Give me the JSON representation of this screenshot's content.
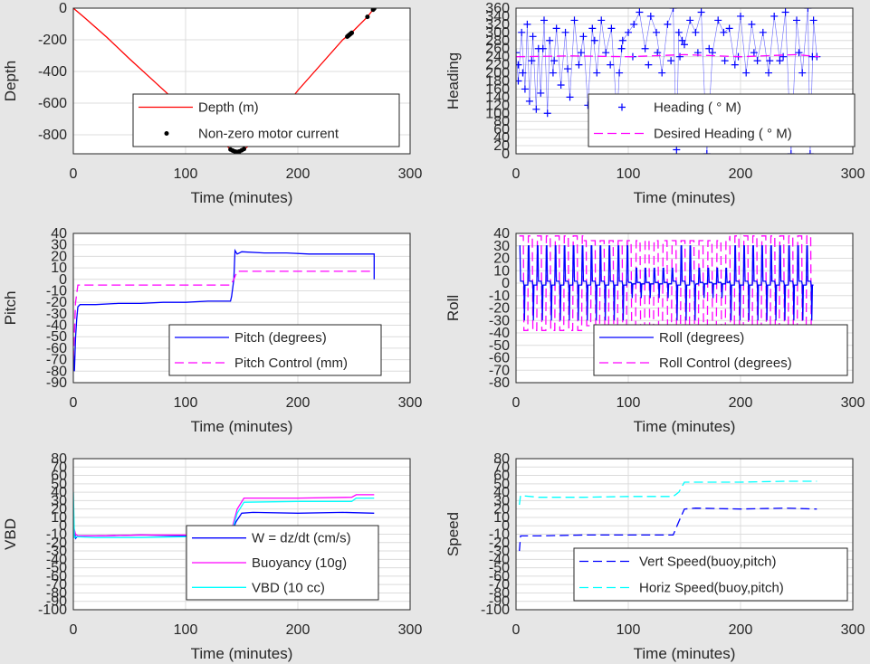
{
  "chart_data": [
    {
      "id": "depth",
      "type": "line",
      "xlabel": "Time (minutes)",
      "ylabel": "Depth",
      "xlim": [
        0,
        300
      ],
      "ylim": [
        -920,
        0
      ],
      "xticks": [
        0,
        100,
        200,
        300
      ],
      "yticks": [
        0,
        -200,
        -400,
        -600,
        -800
      ],
      "grid": true,
      "legend_position": "bottom-right",
      "series": [
        {
          "name": "Depth (m)",
          "style": "line",
          "color": "#ff0000",
          "x": [
            0,
            10,
            30,
            50,
            70,
            90,
            110,
            130,
            140,
            143,
            146,
            149,
            152,
            160,
            180,
            200,
            220,
            240,
            250,
            262,
            268
          ],
          "y": [
            0,
            -60,
            -185,
            -320,
            -450,
            -580,
            -700,
            -830,
            -890,
            -905,
            -910,
            -905,
            -892,
            -850,
            -700,
            -520,
            -360,
            -200,
            -140,
            -55,
            0
          ]
        },
        {
          "name": "Non-zero motor current",
          "style": "dots",
          "color": "#000000",
          "x": [
            140,
            142,
            144,
            146,
            148,
            150,
            152,
            244,
            245,
            246,
            247,
            248,
            262,
            267,
            268
          ],
          "y": [
            -893,
            -900,
            -906,
            -908,
            -905,
            -898,
            -890,
            -180,
            -174,
            -168,
            -162,
            -156,
            -55,
            -10,
            -2
          ]
        }
      ]
    },
    {
      "id": "heading",
      "type": "scatter",
      "xlabel": "Time (minutes)",
      "ylabel": "Heading",
      "xlim": [
        0,
        300
      ],
      "ylim": [
        0,
        360
      ],
      "xticks": [
        0,
        100,
        200,
        300
      ],
      "yticks": [
        0,
        20,
        40,
        60,
        80,
        100,
        120,
        140,
        160,
        180,
        200,
        220,
        240,
        260,
        280,
        300,
        320,
        340,
        360
      ],
      "grid": true,
      "legend_position": "bottom-right",
      "series": [
        {
          "name": "Heading (   ° M)",
          "style": "plus",
          "color": "#0000ff",
          "x": [
            0,
            2,
            5,
            8,
            10,
            12,
            15,
            18,
            20,
            22,
            25,
            28,
            30,
            33,
            36,
            40,
            44,
            48,
            52,
            56,
            60,
            64,
            68,
            72,
            76,
            80,
            85,
            90,
            92,
            95,
            100,
            105,
            110,
            115,
            120,
            125,
            130,
            135,
            140,
            143,
            145,
            148,
            150,
            155,
            160,
            165,
            170,
            175,
            180,
            185,
            190,
            195,
            200,
            205,
            210,
            215,
            220,
            225,
            230,
            235,
            240,
            245,
            250,
            255,
            260,
            262,
            265,
            268,
            2,
            6,
            14,
            24,
            34,
            46,
            58,
            70,
            84,
            94,
            104,
            118,
            126,
            138,
            146,
            162,
            172,
            186,
            198,
            212,
            226,
            238,
            252,
            264
          ],
          "y": [
            250,
            180,
            300,
            160,
            320,
            130,
            290,
            110,
            260,
            150,
            330,
            100,
            280,
            200,
            310,
            170,
            300,
            140,
            330,
            220,
            290,
            120,
            310,
            200,
            330,
            250,
            310,
            90,
            200,
            280,
            300,
            320,
            350,
            260,
            340,
            300,
            200,
            320,
            360,
            10,
            300,
            280,
            270,
            330,
            300,
            350,
            0,
            250,
            330,
            300,
            310,
            220,
            340,
            200,
            320,
            230,
            300,
            200,
            340,
            230,
            350,
            0,
            330,
            200,
            360,
            0,
            330,
            240,
            220,
            200,
            230,
            260,
            230,
            210,
            250,
            280,
            220,
            260,
            240,
            220,
            250,
            230,
            240,
            250,
            260,
            230,
            240,
            250,
            230,
            240,
            250,
            240
          ]
        },
        {
          "name": "Desired Heading (    ° M)",
          "style": "dashed",
          "color": "#ff00ff",
          "x": [
            0,
            50,
            100,
            150,
            200,
            250,
            270
          ],
          "y": [
            240,
            242,
            240,
            245,
            240,
            245,
            240
          ]
        }
      ]
    },
    {
      "id": "pitch",
      "type": "line",
      "xlabel": "Time (minutes)",
      "ylabel": "Pitch",
      "xlim": [
        0,
        300
      ],
      "ylim": [
        -90,
        40
      ],
      "xticks": [
        0,
        100,
        200,
        300
      ],
      "yticks": [
        40,
        30,
        20,
        10,
        0,
        -10,
        -20,
        -30,
        -40,
        -50,
        -60,
        -70,
        -80,
        -90
      ],
      "grid": true,
      "legend_position": "bottom-right",
      "series": [
        {
          "name": "Pitch (degrees)",
          "style": "line",
          "color": "#0000ff",
          "x": [
            0,
            1,
            2,
            3,
            4,
            6,
            20,
            40,
            60,
            80,
            100,
            120,
            140,
            141,
            143,
            144,
            146,
            150,
            170,
            190,
            210,
            230,
            250,
            268,
            268
          ],
          "y": [
            -60,
            -80,
            -50,
            -35,
            -24,
            -22,
            -22,
            -21,
            -21,
            -20,
            -20,
            -19,
            -19,
            -15,
            0,
            25,
            22,
            24,
            23,
            23,
            22,
            22,
            22,
            22,
            0
          ]
        },
        {
          "name": "Pitch Control (mm)",
          "style": "dashed",
          "color": "#ff00ff",
          "x": [
            0,
            2,
            4,
            140,
            143,
            146,
            265
          ],
          "y": [
            -70,
            -20,
            -5,
            -5,
            0,
            7,
            7
          ]
        }
      ]
    },
    {
      "id": "roll",
      "type": "line",
      "xlabel": "Time (minutes)",
      "ylabel": "Roll",
      "xlim": [
        0,
        300
      ],
      "ylim": [
        -80,
        40
      ],
      "xticks": [
        0,
        100,
        200,
        300
      ],
      "yticks": [
        40,
        30,
        20,
        10,
        0,
        -10,
        -20,
        -30,
        -40,
        -50,
        -60,
        -70,
        -80
      ],
      "grid": true,
      "legend_position": "bottom-right",
      "oscillation": {
        "x_start": 3,
        "x_end": 265,
        "period": 8,
        "roll_amplitude": 30,
        "control_amplitude": 38
      },
      "series": [
        {
          "name": "Roll (degrees)",
          "style": "line",
          "color": "#0000ff"
        },
        {
          "name": "Roll Control (degrees)",
          "style": "dashed",
          "color": "#ff00ff"
        }
      ]
    },
    {
      "id": "vbd",
      "type": "line",
      "xlabel": "Time (minutes)",
      "ylabel": "VBD",
      "xlim": [
        0,
        300
      ],
      "ylim": [
        -100,
        80
      ],
      "xticks": [
        0,
        100,
        200,
        300
      ],
      "yticks": [
        80,
        70,
        60,
        50,
        40,
        30,
        20,
        10,
        0,
        -10,
        -20,
        -30,
        -40,
        -50,
        -60,
        -70,
        -80,
        -90,
        -100
      ],
      "grid": true,
      "legend_position": "bottom-right",
      "series": [
        {
          "name": "W = dz/dt (cm/s)",
          "style": "line",
          "color": "#0000ff",
          "x": [
            0,
            2,
            4,
            20,
            60,
            100,
            140,
            145,
            150,
            160,
            200,
            240,
            268
          ],
          "y": [
            0,
            -15,
            -12,
            -12,
            -11,
            -12,
            -11,
            5,
            15,
            16,
            15,
            16,
            15
          ]
        },
        {
          "name": "Buoyancy (10g)",
          "style": "line",
          "color": "#ff00ff",
          "x": [
            0,
            2,
            4,
            20,
            60,
            100,
            140,
            146,
            152,
            160,
            200,
            248,
            252,
            268
          ],
          "y": [
            0,
            -10,
            -12,
            -12,
            -11,
            -11,
            -10,
            20,
            33,
            33,
            33,
            34,
            37,
            37
          ]
        },
        {
          "name": "VBD (10 cc)",
          "style": "line",
          "color": "#00ffff",
          "x": [
            0,
            1,
            3,
            20,
            60,
            100,
            140,
            146,
            152,
            200,
            248,
            252,
            268
          ],
          "y": [
            40,
            -14,
            -13,
            -14,
            -14,
            -13,
            -13,
            15,
            28,
            29,
            29,
            33,
            33
          ]
        }
      ]
    },
    {
      "id": "speed",
      "type": "line",
      "xlabel": "Time (minutes)",
      "ylabel": "Speed",
      "xlim": [
        0,
        300
      ],
      "ylim": [
        -100,
        80
      ],
      "xticks": [
        0,
        100,
        200,
        300
      ],
      "yticks": [
        80,
        70,
        60,
        50,
        40,
        30,
        20,
        10,
        0,
        -10,
        -20,
        -30,
        -40,
        -50,
        -60,
        -70,
        -80,
        -90,
        -100
      ],
      "grid": true,
      "legend_position": "bottom-right",
      "series": [
        {
          "name": "Vert Speed(buoy,pitch)",
          "style": "dashed",
          "color": "#0000ff",
          "x": [
            3,
            4,
            20,
            60,
            100,
            140,
            145,
            150,
            160,
            200,
            240,
            268
          ],
          "y": [
            -30,
            -12,
            -12,
            -11,
            -11,
            -11,
            5,
            20,
            21,
            20,
            21,
            20
          ]
        },
        {
          "name": "Horiz Speed(buoy,pitch)",
          "style": "dashed",
          "color": "#00ffff",
          "x": [
            3,
            4,
            20,
            60,
            100,
            140,
            145,
            150,
            160,
            200,
            240,
            268
          ],
          "y": [
            25,
            36,
            34,
            34,
            35,
            35,
            40,
            52,
            52,
            52,
            53,
            53
          ]
        }
      ]
    }
  ]
}
